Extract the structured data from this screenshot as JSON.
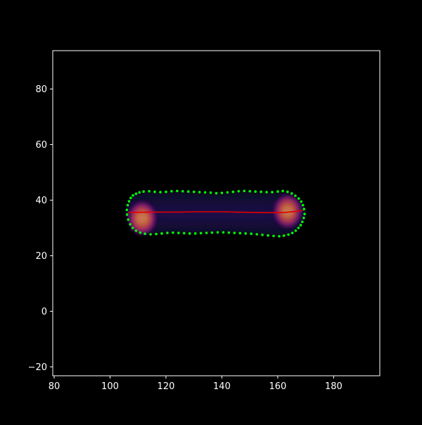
{
  "colors": {
    "background": "#000000",
    "axes": "#ffffff",
    "outline_points": "#00ff00",
    "midline": "#e00000"
  },
  "chart_data": {
    "type": "scatter",
    "title": "",
    "xlabel": "",
    "ylabel": "",
    "xlim": [
      79.5,
      196.5
    ],
    "ylim": [
      -23.2,
      93.8
    ],
    "xticks": [
      80,
      100,
      120,
      140,
      160,
      180
    ],
    "yticks": [
      -20,
      0,
      20,
      40,
      60,
      80
    ],
    "grid": false,
    "legend": "none",
    "image_layer": {
      "colormap": "inferno",
      "description_of_bright_spots": [
        {
          "x": 111.5,
          "y": 33.5,
          "intensity": 1.0
        },
        {
          "x": 163.5,
          "y": 36.0,
          "intensity": 0.95
        }
      ]
    },
    "series": [
      {
        "kind": "points",
        "color": "#00ff00",
        "x": [
          106.0,
          106.3,
          106.8,
          107.4,
          108.2,
          109.3,
          110.5,
          112.0,
          114.0,
          116.0,
          118.0,
          120.0,
          122.0,
          124.0,
          126.0,
          128.0,
          130.0,
          132.0,
          134.0,
          136.0,
          138.0,
          140.0,
          142.0,
          144.0,
          146.0,
          148.0,
          150.0,
          152.0,
          154.0,
          156.0,
          158.0,
          160.0,
          161.8,
          163.5,
          165.0,
          166.3,
          167.5,
          168.4,
          169.0,
          169.4,
          169.6,
          169.3,
          168.8,
          168.2,
          167.4,
          166.4,
          165.2,
          163.8,
          162.2,
          160.5,
          158.5,
          156.5,
          154.5,
          152.5,
          150.5,
          148.5,
          146.5,
          144.5,
          142.5,
          140.5,
          138.5,
          136.5,
          134.5,
          132.5,
          130.5,
          128.5,
          126.5,
          124.5,
          122.5,
          120.5,
          118.5,
          116.5,
          114.5,
          112.5,
          110.8,
          109.3,
          108.1,
          107.2,
          106.5,
          106.1
        ],
        "y": [
          36.5,
          38.2,
          39.6,
          40.8,
          41.7,
          42.3,
          42.8,
          43.1,
          43.2,
          43.0,
          42.9,
          43.0,
          43.2,
          43.3,
          43.2,
          43.1,
          43.0,
          42.9,
          42.8,
          42.7,
          42.5,
          42.6,
          42.8,
          43.0,
          43.2,
          43.3,
          43.2,
          43.1,
          43.0,
          42.9,
          42.9,
          43.1,
          43.3,
          43.0,
          42.4,
          41.6,
          40.6,
          39.5,
          38.2,
          36.8,
          35.0,
          33.6,
          32.2,
          31.0,
          30.0,
          29.0,
          28.2,
          27.6,
          27.2,
          27.0,
          27.1,
          27.3,
          27.5,
          27.7,
          27.9,
          28.0,
          28.1,
          28.2,
          28.3,
          28.4,
          28.4,
          28.3,
          28.2,
          28.1,
          28.0,
          28.0,
          28.1,
          28.2,
          28.3,
          28.2,
          28.0,
          27.8,
          27.7,
          27.9,
          28.3,
          29.0,
          30.0,
          31.3,
          33.0,
          34.8
        ]
      },
      {
        "kind": "line",
        "color": "#e00000",
        "x": [
          106.5,
          110,
          115,
          120,
          125,
          130,
          135,
          140,
          145,
          150,
          155,
          160,
          163,
          166,
          169
        ],
        "y": [
          35.6,
          35.6,
          35.7,
          35.7,
          35.7,
          35.8,
          35.8,
          35.8,
          35.7,
          35.6,
          35.5,
          35.5,
          35.6,
          35.9,
          36.3
        ]
      }
    ]
  }
}
